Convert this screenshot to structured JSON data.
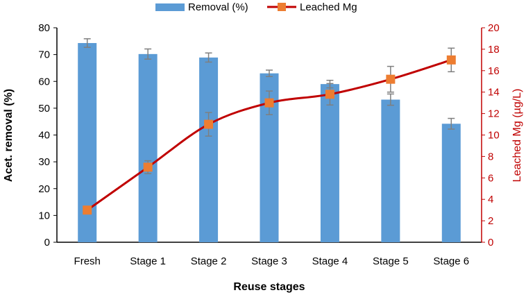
{
  "chart_data": {
    "type": "bar",
    "categories": [
      "Fresh",
      "Stage 1",
      "Stage 2",
      "Stage 3",
      "Stage 4",
      "Stage 5",
      "Stage 6"
    ],
    "xlabel": "Reuse stages",
    "series": [
      {
        "name": "Removal (%)",
        "type": "bar",
        "axis": "left",
        "color": "#5b9bd5",
        "values": [
          74.3,
          70.2,
          68.9,
          63.0,
          59.0,
          53.2,
          44.2
        ],
        "error": [
          1.6,
          1.9,
          1.7,
          1.2,
          1.4,
          2.1,
          2.0
        ]
      },
      {
        "name": "Leached Mg",
        "type": "line",
        "axis": "right",
        "color": "#c00000",
        "marker_color": "#ed7d31",
        "smooth": true,
        "values": [
          3.0,
          7.0,
          11.0,
          13.0,
          13.8,
          15.2,
          17.0
        ],
        "error": [
          0.0,
          0.6,
          1.1,
          1.1,
          1.0,
          1.2,
          1.1
        ]
      }
    ],
    "y_left": {
      "label": "Acet. removal (%)",
      "lim": [
        0,
        80
      ],
      "ticks": [
        0,
        10,
        20,
        30,
        40,
        50,
        60,
        70,
        80
      ]
    },
    "y_right": {
      "label": "Leached Mg (µg/L)",
      "lim": [
        0,
        20
      ],
      "ticks": [
        0,
        2,
        4,
        6,
        8,
        10,
        12,
        14,
        16,
        18,
        20
      ],
      "color": "#c00000"
    },
    "legend": {
      "position": "top-center"
    },
    "grid": false
  }
}
